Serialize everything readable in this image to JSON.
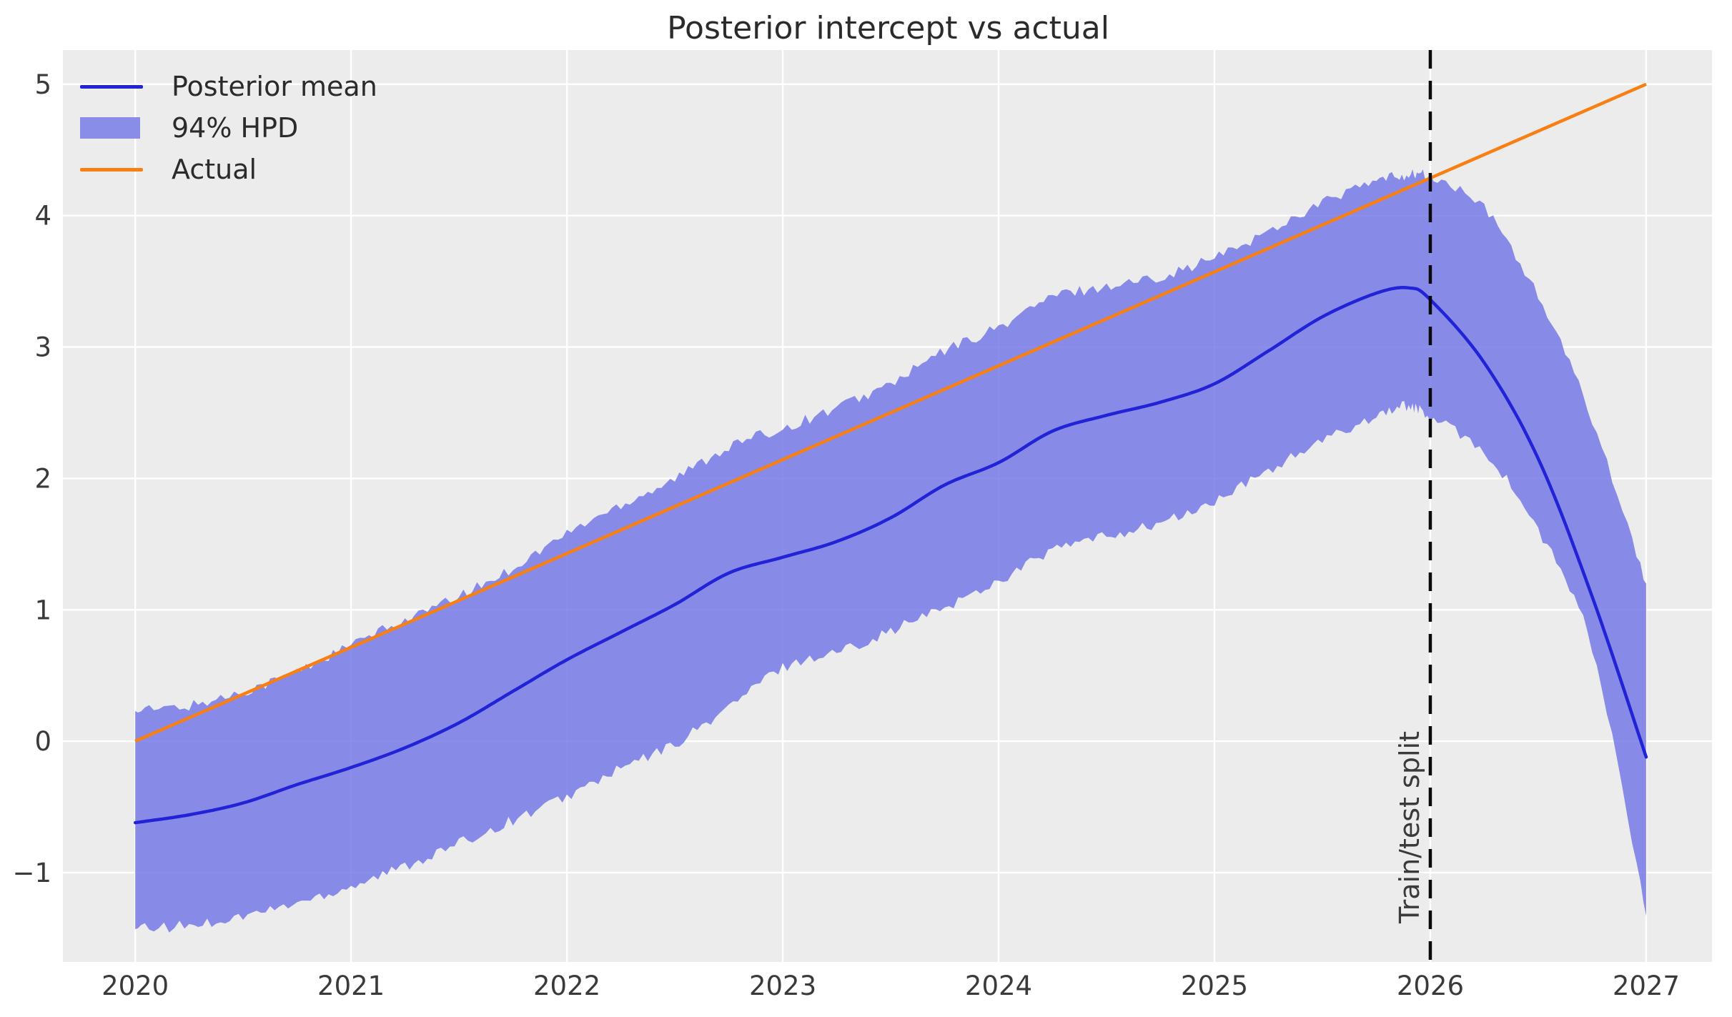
{
  "title": "Posterior intercept vs actual",
  "legend": {
    "items": [
      {
        "label": "Posterior mean",
        "swatch": "line",
        "color": "#2222d6"
      },
      {
        "label": "94% HPD",
        "swatch": "patch",
        "color": "#8a8de7"
      },
      {
        "label": "Actual",
        "swatch": "line",
        "color": "#f87f13"
      }
    ]
  },
  "colors": {
    "figure_bg": "#ffffff",
    "axes_bg": "#ececec",
    "grid": "#ffffff",
    "mean_line": "#2222d6",
    "band_fill_rgba": "rgba(118,122,230,0.85)",
    "actual_line": "#f87f13",
    "split_line": "#0a0a0a",
    "tick_label": "#3a3a3a",
    "title_text": "#2b2b2b"
  },
  "chart_data": {
    "type": "line",
    "title": "Posterior intercept vs actual",
    "xlabel": "",
    "ylabel": "",
    "grid": true,
    "legend_position": "upper left",
    "xlim": [
      2019.665,
      2027.305
    ],
    "ylim": [
      -1.68,
      5.26
    ],
    "x_ticks": [
      2020,
      2021,
      2022,
      2023,
      2024,
      2025,
      2026,
      2027
    ],
    "y_ticks": [
      -1,
      0,
      1,
      2,
      3,
      4,
      5
    ],
    "y_tick_labels": [
      "−1",
      "0",
      "1",
      "2",
      "3",
      "4",
      "5"
    ],
    "split": {
      "x": 2026,
      "label": "Train/test split"
    },
    "series": [
      {
        "name": "Posterior mean",
        "kind": "line",
        "color": "#2222d6",
        "points": [
          [
            2020.0,
            -0.62
          ],
          [
            2020.25,
            -0.56
          ],
          [
            2020.5,
            -0.47
          ],
          [
            2020.75,
            -0.33
          ],
          [
            2021.0,
            -0.2
          ],
          [
            2021.25,
            -0.05
          ],
          [
            2021.5,
            0.14
          ],
          [
            2021.75,
            0.38
          ],
          [
            2022.0,
            0.62
          ],
          [
            2022.25,
            0.83
          ],
          [
            2022.5,
            1.04
          ],
          [
            2022.75,
            1.28
          ],
          [
            2023.0,
            1.4
          ],
          [
            2023.25,
            1.52
          ],
          [
            2023.5,
            1.7
          ],
          [
            2023.75,
            1.95
          ],
          [
            2024.0,
            2.12
          ],
          [
            2024.25,
            2.36
          ],
          [
            2024.5,
            2.48
          ],
          [
            2024.75,
            2.58
          ],
          [
            2025.0,
            2.72
          ],
          [
            2025.25,
            2.97
          ],
          [
            2025.5,
            3.23
          ],
          [
            2025.75,
            3.41
          ],
          [
            2025.9,
            3.45
          ],
          [
            2026.0,
            3.36
          ],
          [
            2026.25,
            2.88
          ],
          [
            2026.5,
            2.15
          ],
          [
            2026.75,
            1.1
          ],
          [
            2027.0,
            -0.12
          ]
        ]
      },
      {
        "name": "94% HPD",
        "kind": "band",
        "color": "rgba(118,122,230,0.85)",
        "upper": [
          [
            2020.0,
            0.23
          ],
          [
            2020.25,
            0.27
          ],
          [
            2020.5,
            0.38
          ],
          [
            2020.75,
            0.53
          ],
          [
            2021.0,
            0.73
          ],
          [
            2021.25,
            0.92
          ],
          [
            2021.5,
            1.1
          ],
          [
            2021.75,
            1.32
          ],
          [
            2022.0,
            1.58
          ],
          [
            2022.25,
            1.8
          ],
          [
            2022.5,
            2.0
          ],
          [
            2022.75,
            2.24
          ],
          [
            2023.0,
            2.38
          ],
          [
            2023.25,
            2.54
          ],
          [
            2023.5,
            2.72
          ],
          [
            2023.75,
            2.97
          ],
          [
            2024.0,
            3.15
          ],
          [
            2024.25,
            3.38
          ],
          [
            2024.5,
            3.46
          ],
          [
            2024.75,
            3.54
          ],
          [
            2025.0,
            3.68
          ],
          [
            2025.25,
            3.88
          ],
          [
            2025.5,
            4.1
          ],
          [
            2025.75,
            4.26
          ],
          [
            2025.9,
            4.31
          ],
          [
            2026.0,
            4.29
          ],
          [
            2026.25,
            4.05
          ],
          [
            2026.5,
            3.38
          ],
          [
            2026.75,
            2.45
          ],
          [
            2027.0,
            1.2
          ]
        ],
        "lower": [
          [
            2020.0,
            -1.43
          ],
          [
            2020.25,
            -1.4
          ],
          [
            2020.5,
            -1.33
          ],
          [
            2020.75,
            -1.23
          ],
          [
            2021.0,
            -1.1
          ],
          [
            2021.25,
            -0.95
          ],
          [
            2021.5,
            -0.78
          ],
          [
            2021.75,
            -0.6
          ],
          [
            2022.0,
            -0.42
          ],
          [
            2022.25,
            -0.21
          ],
          [
            2022.5,
            -0.02
          ],
          [
            2022.75,
            0.26
          ],
          [
            2023.0,
            0.56
          ],
          [
            2023.25,
            0.68
          ],
          [
            2023.5,
            0.84
          ],
          [
            2023.75,
            1.02
          ],
          [
            2024.0,
            1.22
          ],
          [
            2024.25,
            1.45
          ],
          [
            2024.5,
            1.56
          ],
          [
            2024.75,
            1.66
          ],
          [
            2025.0,
            1.82
          ],
          [
            2025.25,
            2.06
          ],
          [
            2025.5,
            2.28
          ],
          [
            2025.75,
            2.48
          ],
          [
            2025.9,
            2.55
          ],
          [
            2026.0,
            2.46
          ],
          [
            2026.25,
            2.2
          ],
          [
            2026.5,
            1.6
          ],
          [
            2026.75,
            0.7
          ],
          [
            2027.0,
            -1.33
          ]
        ]
      },
      {
        "name": "Actual",
        "kind": "line",
        "color": "#f87f13",
        "points": [
          [
            2020.0,
            0.0
          ],
          [
            2027.0,
            5.0
          ]
        ]
      }
    ]
  }
}
